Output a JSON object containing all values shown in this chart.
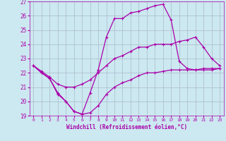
{
  "xlabel": "Windchill (Refroidissement éolien,°C)",
  "xlim": [
    -0.5,
    23.5
  ],
  "ylim": [
    19,
    27
  ],
  "yticks": [
    19,
    20,
    21,
    22,
    23,
    24,
    25,
    26,
    27
  ],
  "xticks": [
    0,
    1,
    2,
    3,
    4,
    5,
    6,
    7,
    8,
    9,
    10,
    11,
    12,
    13,
    14,
    15,
    16,
    17,
    18,
    19,
    20,
    21,
    22,
    23
  ],
  "bg_color": "#cce8f0",
  "line_color": "#aa00aa",
  "grid_color": "#aabbcc",
  "series": [
    {
      "x": [
        0,
        1,
        2,
        3,
        4,
        5,
        6,
        7,
        8,
        9,
        10,
        11,
        12,
        13,
        14,
        15,
        16,
        17,
        18,
        19,
        20,
        21,
        22,
        23
      ],
      "y": [
        22.5,
        22.0,
        21.6,
        20.5,
        20.0,
        19.3,
        19.1,
        20.6,
        22.2,
        24.5,
        25.8,
        25.8,
        26.2,
        26.3,
        26.5,
        26.7,
        26.8,
        25.7,
        22.8,
        22.3,
        22.2,
        22.3,
        22.3,
        22.3
      ]
    },
    {
      "x": [
        0,
        1,
        2,
        3,
        4,
        5,
        6,
        7,
        8,
        9,
        10,
        11,
        12,
        13,
        14,
        15,
        16,
        17,
        18,
        19,
        20,
        21,
        22,
        23
      ],
      "y": [
        22.5,
        22.1,
        21.7,
        21.2,
        21.0,
        21.0,
        21.2,
        21.5,
        22.0,
        22.5,
        23.0,
        23.2,
        23.5,
        23.8,
        23.8,
        24.0,
        24.0,
        24.0,
        24.2,
        24.3,
        24.5,
        23.8,
        23.0,
        22.5
      ]
    },
    {
      "x": [
        0,
        1,
        2,
        3,
        4,
        5,
        6,
        7,
        8,
        9,
        10,
        11,
        12,
        13,
        14,
        15,
        16,
        17,
        18,
        19,
        20,
        21,
        22,
        23
      ],
      "y": [
        22.5,
        22.0,
        21.6,
        20.6,
        20.0,
        19.3,
        19.1,
        19.2,
        19.7,
        20.5,
        21.0,
        21.3,
        21.5,
        21.8,
        22.0,
        22.0,
        22.1,
        22.2,
        22.2,
        22.2,
        22.2,
        22.2,
        22.2,
        22.3
      ]
    }
  ]
}
